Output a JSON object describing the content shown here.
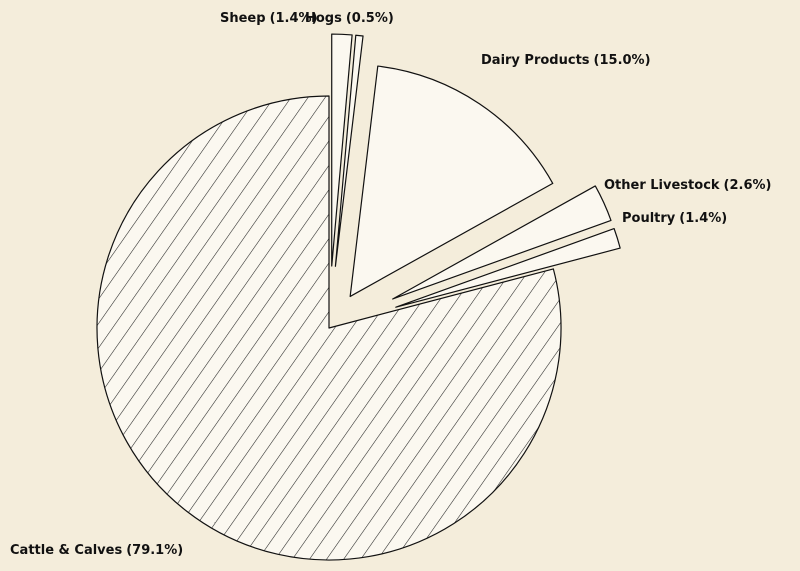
{
  "chart_data": {
    "type": "pie",
    "categories": [
      "Cattle & Calves",
      "Sheep",
      "Hogs",
      "Dairy Products",
      "Other Livestock",
      "Poultry"
    ],
    "values": [
      79.1,
      1.4,
      0.5,
      15.0,
      2.6,
      1.4
    ],
    "value_labels": [
      "(79.1%)",
      "(1.4%)",
      "(0.5%)",
      "(15.0%)",
      "(2.6%)",
      "(1.4%)"
    ]
  }
}
